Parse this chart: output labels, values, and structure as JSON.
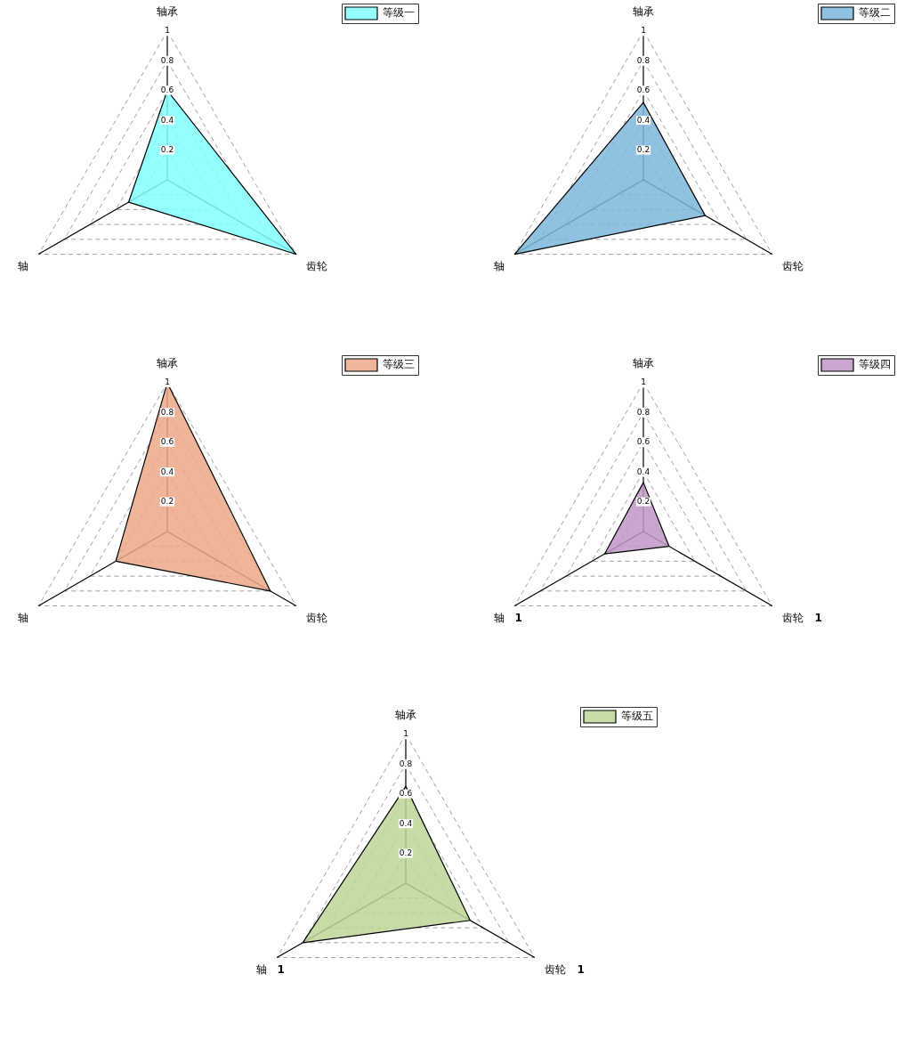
{
  "chart_data": [
    {
      "type": "radar",
      "categories": [
        "轴承",
        "齿轮",
        "轴"
      ],
      "series": [
        {
          "name": "等级一",
          "color": "#80ffff",
          "values": [
            0.6,
            1,
            0.3
          ]
        }
      ],
      "ylim": [
        0,
        1
      ],
      "yticks": [
        0.2,
        0.4,
        0.6,
        0.8,
        1
      ],
      "grid": true,
      "legend": "top right"
    },
    {
      "type": "radar",
      "categories": [
        "轴承",
        "齿轮",
        "轴"
      ],
      "series": [
        {
          "name": "等级二",
          "color": "#7eb6da",
          "values": [
            0.52,
            0.48,
            1
          ]
        }
      ],
      "ylim": [
        0,
        1
      ],
      "yticks": [
        0.2,
        0.4,
        0.6,
        0.8,
        1
      ],
      "grid": true,
      "legend": "top right"
    },
    {
      "type": "radar",
      "categories": [
        "轴承",
        "齿轮",
        "轴"
      ],
      "series": [
        {
          "name": "等级三",
          "color": "#eba887",
          "values": [
            1,
            0.8,
            0.4
          ]
        }
      ],
      "ylim": [
        0,
        1
      ],
      "yticks": [
        0.2,
        0.4,
        0.6,
        0.8,
        1
      ],
      "grid": true,
      "legend": "top right"
    },
    {
      "type": "radar",
      "categories": [
        "轴承",
        "齿轮",
        "轴"
      ],
      "series": [
        {
          "name": "等级四",
          "color": "#bf97c6",
          "values": [
            0.33,
            0.2,
            0.3
          ]
        }
      ],
      "ylim": [
        0,
        1
      ],
      "yticks": [
        0.2,
        0.4,
        0.6,
        0.8,
        1
      ],
      "grid": true,
      "legend": "top right",
      "annotations": [
        "1",
        "1"
      ]
    },
    {
      "type": "radar",
      "categories": [
        "轴承",
        "齿轮",
        "轴"
      ],
      "series": [
        {
          "name": "等级五",
          "color": "#bcd597",
          "values": [
            0.65,
            0.5,
            0.8
          ]
        }
      ],
      "ylim": [
        0,
        1
      ],
      "yticks": [
        0.2,
        0.4,
        0.6,
        0.8,
        1
      ],
      "grid": true,
      "legend": "top right",
      "annotations": [
        "1",
        "1"
      ]
    }
  ]
}
